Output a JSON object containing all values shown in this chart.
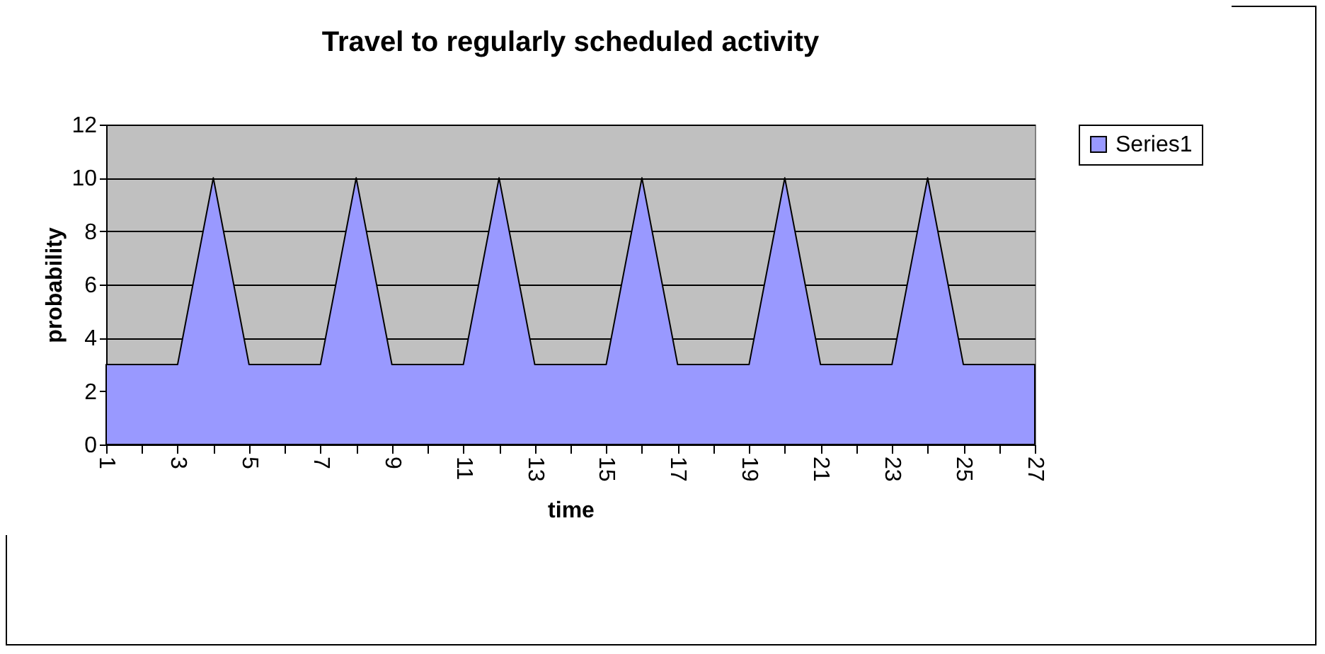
{
  "chart_data": {
    "type": "area",
    "title": "Travel to regularly scheduled activity",
    "xlabel": "time",
    "ylabel": "probability",
    "categories": [
      "1",
      null,
      "3",
      null,
      "5",
      null,
      "7",
      null,
      "9",
      null,
      "11",
      null,
      "13",
      null,
      "15",
      null,
      "17",
      null,
      "19",
      null,
      "21",
      null,
      "23",
      null,
      "25",
      null,
      "27"
    ],
    "series": [
      {
        "name": "Series1",
        "color": "#9999ff",
        "values": [
          3,
          3,
          3,
          10,
          3,
          3,
          3,
          10,
          3,
          3,
          3,
          10,
          3,
          3,
          3,
          10,
          3,
          3,
          3,
          10,
          3,
          3,
          3,
          10,
          3,
          3,
          3
        ]
      }
    ],
    "ylim": [
      0,
      12
    ],
    "yticks": [
      0,
      2,
      4,
      6,
      8,
      10,
      12
    ],
    "grid": "y",
    "legend": "right"
  }
}
